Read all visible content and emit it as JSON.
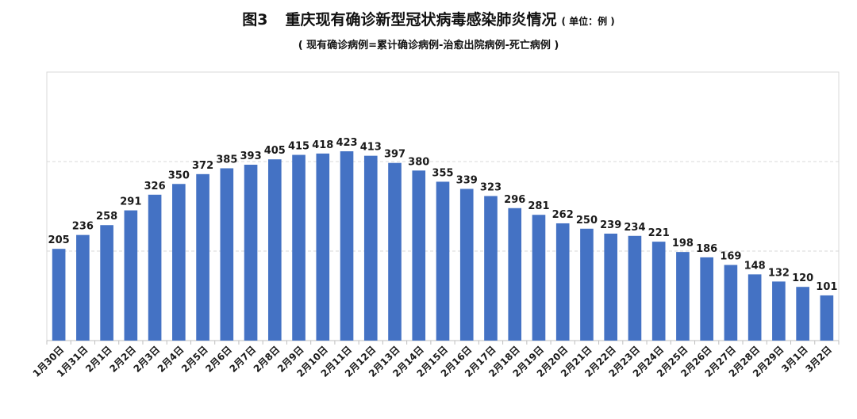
{
  "header": {
    "figure_no": "图3",
    "title": "重庆现有确诊新型冠状病毒感染肺炎情况",
    "unit": "( 单位：例 )",
    "subtitle": "( 现有确诊病例=累计确诊病例-治愈出院病例-死亡病例 )"
  },
  "colors": {
    "bar": "#4472C4",
    "grid": "#d9d9d9",
    "axis": "#bfbfbf"
  },
  "chart_data": {
    "type": "bar",
    "title": "重庆现有确诊新型冠状病毒感染肺炎情况",
    "subtitle": "( 现有确诊病例=累计确诊病例-治愈出院病例-死亡病例 )",
    "xlabel": "",
    "ylabel": "",
    "ylim": [
      0,
      600
    ],
    "grid": true,
    "categories": [
      "1月30日",
      "1月31日",
      "2月1日",
      "2月2日",
      "2月3日",
      "2月4日",
      "2月5日",
      "2月6日",
      "2月7日",
      "2月8日",
      "2月9日",
      "2月10日",
      "2月11日",
      "2月12日",
      "2月13日",
      "2月14日",
      "2月15日",
      "2月16日",
      "2月17日",
      "2月18日",
      "2月19日",
      "2月20日",
      "2月21日",
      "2月22日",
      "2月23日",
      "2月24日",
      "2月25日",
      "2月26日",
      "2月27日",
      "2月28日",
      "2月29日",
      "3月1日",
      "3月2日"
    ],
    "values": [
      205,
      236,
      258,
      291,
      326,
      350,
      372,
      385,
      393,
      405,
      415,
      418,
      423,
      413,
      397,
      380,
      355,
      339,
      323,
      296,
      281,
      262,
      250,
      239,
      234,
      221,
      198,
      186,
      169,
      148,
      132,
      120,
      101
    ]
  }
}
